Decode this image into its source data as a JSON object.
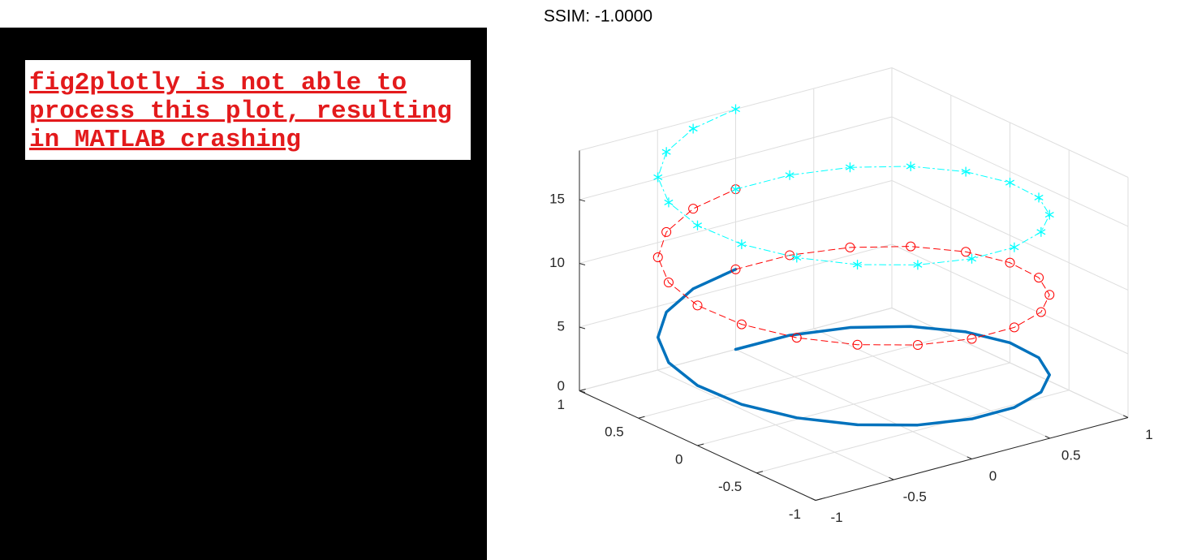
{
  "panel": {
    "message_lines": [
      "fig2plotly is not able to",
      "process this plot, resulting",
      "in MATLAB crashing"
    ]
  },
  "chart_data": {
    "type": "line3d",
    "title": "SSIM: -1.0000",
    "x": [
      0,
      0.309,
      0.5878,
      0.809,
      0.9511,
      1,
      0.9511,
      0.809,
      0.5878,
      0.309,
      0,
      -0.309,
      -0.5878,
      -0.809,
      -0.9511,
      -1,
      -0.9511,
      -0.809,
      -0.5878,
      -0.309,
      0
    ],
    "y": [
      1,
      0.9511,
      0.809,
      0.5878,
      0.309,
      0,
      -0.309,
      -0.5878,
      -0.809,
      -0.9511,
      -1,
      -0.9511,
      -0.809,
      -0.5878,
      -0.309,
      0,
      0.309,
      0.5878,
      0.809,
      0.9511,
      1
    ],
    "series": [
      {
        "color": "#0072bd",
        "line_style": "solid",
        "marker": "none",
        "line_width": 3.5,
        "z": [
          0,
          0.3142,
          0.6283,
          0.9425,
          1.2566,
          1.5708,
          1.885,
          2.1991,
          2.5133,
          2.8274,
          3.1416,
          3.4558,
          3.7699,
          4.0841,
          4.3982,
          4.7124,
          5.0265,
          5.3407,
          5.6549,
          5.969,
          6.2832
        ]
      },
      {
        "color": "#ff0000",
        "line_style": "dashed",
        "marker": "circle",
        "line_width": 1,
        "z": [
          6.2832,
          6.5974,
          6.9115,
          7.2257,
          7.5398,
          7.854,
          8.1681,
          8.4823,
          8.7965,
          9.1106,
          9.4248,
          9.739,
          10.0531,
          10.3673,
          10.6814,
          10.9956,
          11.3097,
          11.6239,
          11.9381,
          12.2522,
          12.5664
        ]
      },
      {
        "color": "#00ffff",
        "line_style": "dashdot",
        "marker": "asterisk",
        "line_width": 1,
        "z": [
          12.5664,
          12.8805,
          13.1947,
          13.5088,
          13.823,
          14.1372,
          14.4513,
          14.7655,
          15.0796,
          15.3938,
          15.708,
          16.0221,
          16.3363,
          16.6504,
          16.9646,
          17.2788,
          17.5929,
          17.9071,
          18.2212,
          18.5354,
          18.8496
        ]
      }
    ],
    "xlim": [
      -1,
      1
    ],
    "xticks": [
      -1,
      -0.5,
      0,
      0.5,
      1
    ],
    "ylim": [
      -1,
      1
    ],
    "yticks": [
      -1,
      -0.5,
      0,
      0.5,
      1
    ],
    "zlim": [
      0,
      18.85
    ],
    "zticks": [
      0,
      5,
      10,
      15
    ],
    "grid": true
  }
}
